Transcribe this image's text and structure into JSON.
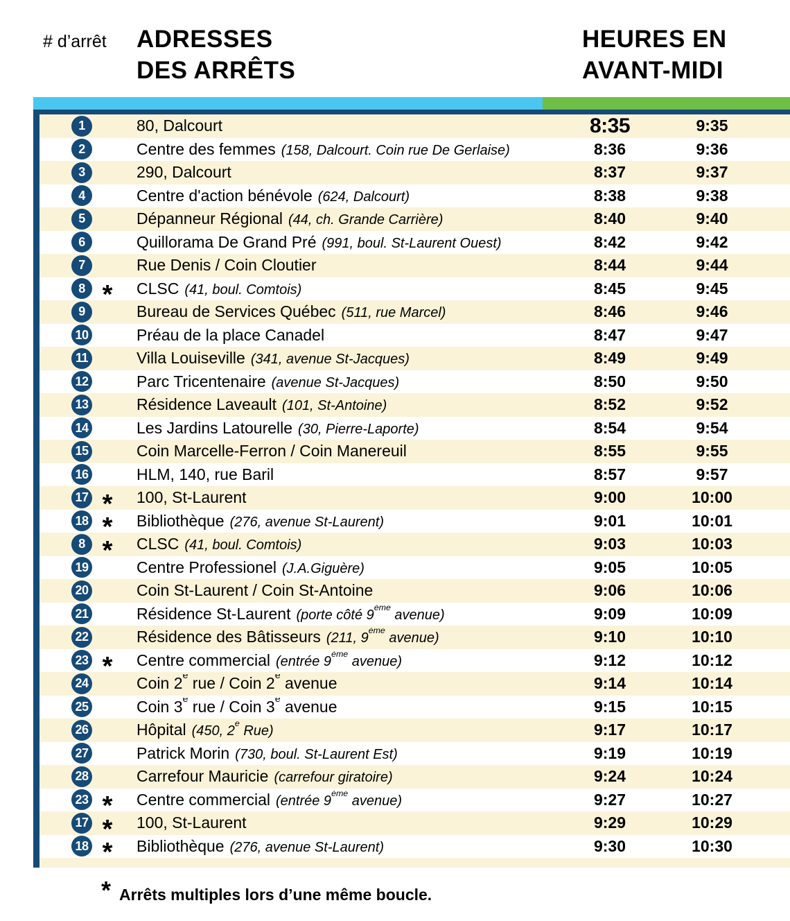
{
  "colors": {
    "navy": "#164A77",
    "cyan": "#4AC7F0",
    "green": "#6FBE45",
    "cream": "#FAF3D8"
  },
  "header": {
    "stop_col_label": "# d’arrêt",
    "addresses_title": "ADRESSES\nDES ARRÊTS",
    "hours_title": "HEURES EN\nAVANT-MIDI"
  },
  "footnote": {
    "symbol": "*",
    "text": "Arrêts multiples lors d’une même boucle."
  },
  "rows": [
    {
      "stop": "1",
      "star": false,
      "name": "80, Dalcourt",
      "detail": "",
      "t1": "8:35",
      "t2": "9:35",
      "emphasis": true
    },
    {
      "stop": "2",
      "star": false,
      "name": "Centre des femmes",
      "detail": "(158, Dalcourt. Coin rue De Gerlaise)",
      "t1": "8:36",
      "t2": "9:36"
    },
    {
      "stop": "3",
      "star": false,
      "name": "290, Dalcourt",
      "detail": "",
      "t1": "8:37",
      "t2": "9:37"
    },
    {
      "stop": "4",
      "star": false,
      "name": "Centre d'action bénévole",
      "detail": "(624, Dalcourt)",
      "t1": "8:38",
      "t2": "9:38"
    },
    {
      "stop": "5",
      "star": false,
      "name": "Dépanneur Régional",
      "detail": "(44, ch. Grande Carrière)",
      "t1": "8:40",
      "t2": "9:40"
    },
    {
      "stop": "6",
      "star": false,
      "name": "Quillorama De Grand Pré",
      "detail": "(991, boul. St-Laurent Ouest)",
      "t1": "8:42",
      "t2": "9:42"
    },
    {
      "stop": "7",
      "star": false,
      "name": "Rue Denis / Coin Cloutier",
      "detail": "",
      "t1": "8:44",
      "t2": "9:44"
    },
    {
      "stop": "8",
      "star": true,
      "name": "CLSC",
      "detail": "(41, boul. Comtois)",
      "t1": "8:45",
      "t2": "9:45"
    },
    {
      "stop": "9",
      "star": false,
      "name": "Bureau de Services Québec",
      "detail": "(511, rue Marcel)",
      "t1": "8:46",
      "t2": "9:46"
    },
    {
      "stop": "10",
      "star": false,
      "name": "Préau de la place Canadel",
      "detail": "",
      "t1": "8:47",
      "t2": "9:47"
    },
    {
      "stop": "11",
      "star": false,
      "name": "Villa Louiseville",
      "detail": "(341, avenue St-Jacques)",
      "t1": "8:49",
      "t2": "9:49"
    },
    {
      "stop": "12",
      "star": false,
      "name": "Parc Tricentenaire",
      "detail": "(avenue St-Jacques)",
      "t1": "8:50",
      "t2": "9:50"
    },
    {
      "stop": "13",
      "star": false,
      "name": "Résidence Laveault",
      "detail": "(101, St-Antoine)",
      "t1": "8:52",
      "t2": "9:52"
    },
    {
      "stop": "14",
      "star": false,
      "name": "Les Jardins Latourelle",
      "detail": "(30, Pierre-Laporte)",
      "t1": "8:54",
      "t2": "9:54"
    },
    {
      "stop": "15",
      "star": false,
      "name": "Coin Marcelle-Ferron / Coin Manereuil",
      "detail": "",
      "t1": "8:55",
      "t2": "9:55"
    },
    {
      "stop": "16",
      "star": false,
      "name": "HLM, 140, rue Baril",
      "detail": "",
      "t1": "8:57",
      "t2": "9:57"
    },
    {
      "stop": "17",
      "star": true,
      "name": "100, St-Laurent",
      "detail": "",
      "t1": "9:00",
      "t2": "10:00"
    },
    {
      "stop": "18",
      "star": true,
      "name": "Bibliothèque",
      "detail": "(276, avenue St-Laurent)",
      "t1": "9:01",
      "t2": "10:01"
    },
    {
      "stop": "8",
      "star": true,
      "name": "CLSC",
      "detail": "(41, boul. Comtois)",
      "t1": "9:03",
      "t2": "10:03"
    },
    {
      "stop": "19",
      "star": false,
      "name": "Centre Professionel",
      "detail": "(J.A.Giguère)",
      "t1": "9:05",
      "t2": "10:05"
    },
    {
      "stop": "20",
      "star": false,
      "name": "Coin St-Laurent / Coin St-Antoine",
      "detail": "",
      "t1": "9:06",
      "t2": "10:06"
    },
    {
      "stop": "21",
      "star": false,
      "name": "Résidence St-Laurent",
      "detail": "(porte côté 9^ème^ avenue)",
      "t1": "9:09",
      "t2": "10:09"
    },
    {
      "stop": "22",
      "star": false,
      "name": "Résidence des Bâtisseurs",
      "detail": "(211, 9^ème^ avenue)",
      "t1": "9:10",
      "t2": "10:10"
    },
    {
      "stop": "23",
      "star": true,
      "name": "Centre commercial",
      "detail": "(entrée 9^ème^ avenue)",
      "t1": "9:12",
      "t2": "10:12"
    },
    {
      "stop": "24",
      "star": false,
      "name": "Coin 2^e^ rue / Coin 2^e^ avenue",
      "detail": "",
      "t1": "9:14",
      "t2": "10:14"
    },
    {
      "stop": "25",
      "star": false,
      "name": "Coin 3^e^ rue / Coin 3^e^ avenue",
      "detail": "",
      "t1": "9:15",
      "t2": "10:15"
    },
    {
      "stop": "26",
      "star": false,
      "name": "Hôpital",
      "detail": "(450, 2^e^ Rue)",
      "t1": "9:17",
      "t2": "10:17"
    },
    {
      "stop": "27",
      "star": false,
      "name": "Patrick Morin",
      "detail": "(730, boul. St-Laurent Est)",
      "t1": "9:19",
      "t2": "10:19"
    },
    {
      "stop": "28",
      "star": false,
      "name": "Carrefour Mauricie",
      "detail": "(carrefour giratoire)",
      "t1": "9:24",
      "t2": "10:24"
    },
    {
      "stop": "23",
      "star": true,
      "name": "Centre commercial",
      "detail": "(entrée 9^ème^ avenue)",
      "t1": "9:27",
      "t2": "10:27"
    },
    {
      "stop": "17",
      "star": true,
      "name": "100, St-Laurent",
      "detail": "",
      "t1": "9:29",
      "t2": "10:29"
    },
    {
      "stop": "18",
      "star": true,
      "name": "Bibliothèque",
      "detail": "(276, avenue St-Laurent)",
      "t1": "9:30",
      "t2": "10:30"
    }
  ]
}
